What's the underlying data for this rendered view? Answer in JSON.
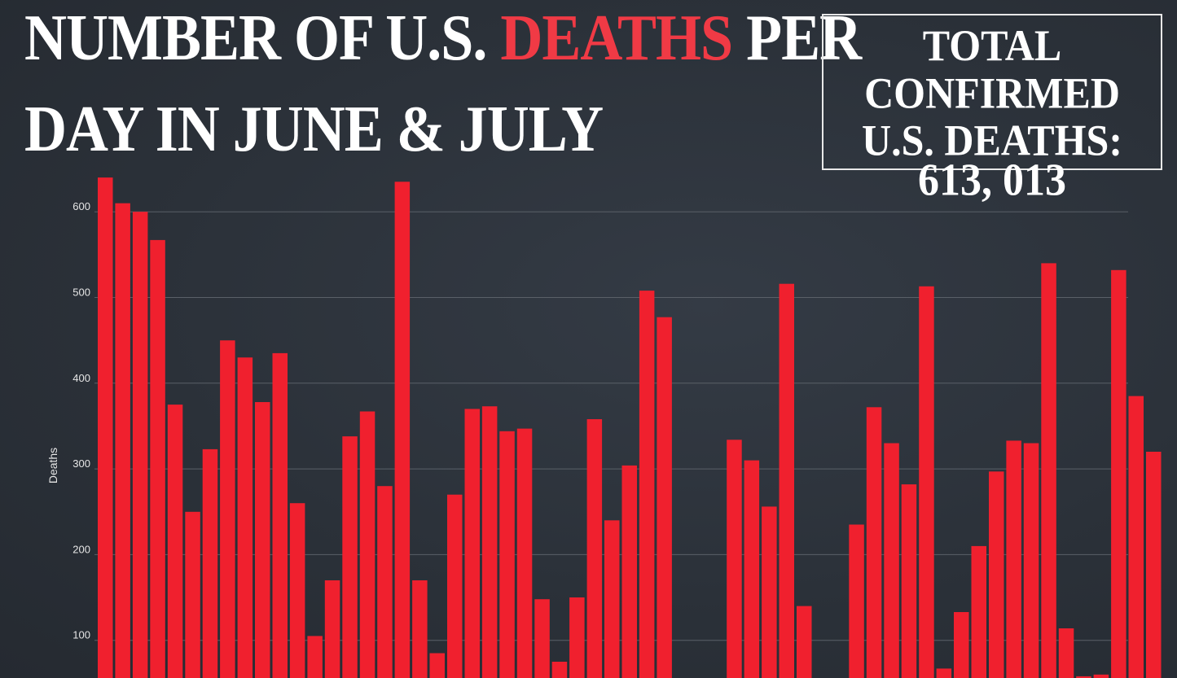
{
  "title": {
    "line1_part1": "NUMBER OF U.S. ",
    "line1_highlight": "DEATHS",
    "line1_part2": " PER",
    "line2": "DAY IN JUNE & JULY"
  },
  "total_box": {
    "label_line1": "TOTAL CONFIRMED",
    "label_line2": "U.S. DEATHS:",
    "value": "613, 013"
  },
  "colors": {
    "bar": "#f0202e",
    "accent": "#f03a45",
    "grid": "#5a6068",
    "background": "#2b3139"
  },
  "chart_data": {
    "type": "bar",
    "title": "NUMBER OF U.S. DEATHS PER DAY IN JUNE & JULY",
    "xlabel": "",
    "ylabel": "Deaths",
    "y_ticks": [
      100,
      200,
      300,
      400,
      500,
      600
    ],
    "ylim": [
      0,
      640
    ],
    "grid": true,
    "series": [
      {
        "values": [
          640,
          610,
          600,
          567,
          375,
          250,
          323,
          450,
          430,
          378,
          435,
          260,
          105,
          170,
          338,
          367,
          280,
          635,
          170,
          85,
          270,
          370,
          373,
          344,
          347,
          148,
          75,
          150,
          358,
          240,
          304,
          508,
          477,
          0,
          0,
          0,
          334,
          310,
          256,
          516,
          140,
          0,
          0,
          235,
          372,
          330,
          282,
          513,
          67,
          133,
          210,
          297,
          333,
          330,
          540,
          114,
          58,
          60,
          532,
          385,
          320
        ]
      }
    ]
  }
}
